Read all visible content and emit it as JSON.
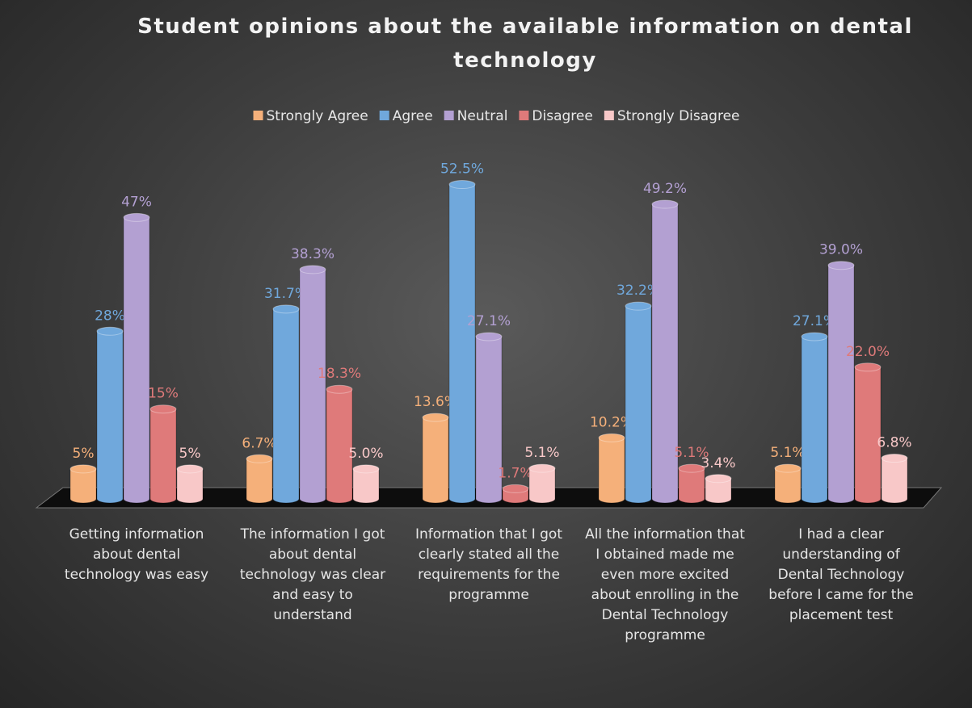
{
  "chart_data": {
    "type": "bar",
    "title": "Student opinions about the available information on dental technology",
    "categories": [
      "Getting information about dental technology was easy",
      "The information I got about dental technology was clear and easy to understand",
      "Information that I got clearly stated all the requirements for the programme",
      "All the information that I obtained made me even more excited about enrolling in the Dental Technology programme",
      "I had a clear understanding of Dental Technology before I came for the placement test"
    ],
    "series": [
      {
        "name": "Strongly Agree",
        "color": "#f5b07a",
        "values": [
          5,
          6.7,
          13.6,
          10.2,
          5.1
        ],
        "value_labels": [
          "5%",
          "6.7%",
          "13.6%",
          "10.2%",
          "5.1%"
        ]
      },
      {
        "name": "Agree",
        "color": "#70a8dc",
        "values": [
          28,
          31.7,
          52.5,
          32.2,
          27.1
        ],
        "value_labels": [
          "28%",
          "31.7%",
          "52.5%",
          "32.2%",
          "27.1%"
        ]
      },
      {
        "name": "Neutral",
        "color": "#b3a0d2",
        "values": [
          47,
          38.3,
          27.1,
          49.2,
          39.0
        ],
        "value_labels": [
          "47%",
          "38.3%",
          "27.1%",
          "49.2%",
          "39.0%"
        ]
      },
      {
        "name": "Disagree",
        "color": "#df7a7a",
        "values": [
          15,
          18.3,
          1.7,
          5.1,
          22.0
        ],
        "value_labels": [
          "15%",
          "18.3%",
          "1.7%",
          "5.1%",
          "22.0%"
        ]
      },
      {
        "name": "Strongly Disagree",
        "color": "#f8c8c8",
        "values": [
          5,
          5.0,
          5.1,
          3.4,
          6.8
        ],
        "value_labels": [
          "5%",
          "5.0%",
          "5.1%",
          "3.4%",
          "6.8%"
        ]
      }
    ],
    "ylim": [
      0,
      55
    ],
    "legend": "top"
  }
}
